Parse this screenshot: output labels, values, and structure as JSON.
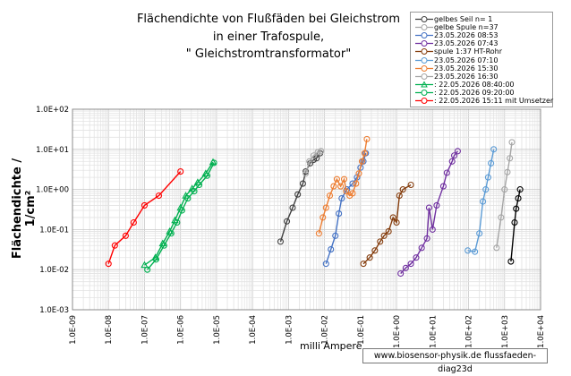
{
  "chart_data": {
    "type": "scatter",
    "title_lines": [
      "Flächendichte von Flußfäden bei Gleichstrom",
      "in einer Trafospule,",
      "\" Gleichstromtransformator\""
    ],
    "xlabel": "milli Ampere",
    "ylabel": "Flächendichte / 1/cm²",
    "x_scale": "log",
    "y_scale": "log",
    "xlim": [
      1e-09,
      10000.0
    ],
    "ylim": [
      0.001,
      100
    ],
    "x_tick_labels": [
      "1.0E-09",
      "1.0E-08",
      "1.0E-07",
      "1.0E-06",
      "1.0E-05",
      "1.0E-04",
      "1.0E-03",
      "1.0E-02",
      "1.0E-01",
      "1.0E+00",
      "1.0E+01",
      "1.0E+02",
      "1.0E+03",
      "1.0E+04"
    ],
    "y_tick_labels": [
      "1.0E+02",
      "1.0E+01",
      "1.0E+00",
      "1.0E-01",
      "1.0E-02",
      "1.0E-03"
    ],
    "grid": true,
    "legend_position": "top-right",
    "footer_text": "www.biosensor-physik.de  flussfaeden-diag23d",
    "series": [
      {
        "name": "gelbes Seil n= 1",
        "color": "#404040",
        "marker": "circle",
        "points": [
          [
            0.0006,
            0.05
          ],
          [
            0.0009,
            0.16
          ],
          [
            0.0013,
            0.35
          ],
          [
            0.0018,
            0.75
          ],
          [
            0.0025,
            1.4
          ],
          [
            0.003,
            2.8
          ],
          [
            0.004,
            4.5
          ],
          [
            0.005,
            5.5
          ],
          [
            0.006,
            6
          ],
          [
            0.0075,
            8
          ]
        ]
      },
      {
        "name": "gelbe Spule n=37",
        "color": "#a6a6a6",
        "marker": "circle",
        "points": [
          [
            0.003,
            2.5
          ],
          [
            0.0038,
            5
          ],
          [
            0.005,
            7
          ],
          [
            0.0065,
            8.5
          ],
          [
            0.008,
            9
          ]
        ]
      },
      {
        "name": "23.05.2026 08:53",
        "color": "#4472c4",
        "marker": "circle",
        "points": [
          [
            0.011,
            0.014
          ],
          [
            0.015,
            0.032
          ],
          [
            0.02,
            0.07
          ],
          [
            0.025,
            0.25
          ],
          [
            0.03,
            0.6
          ],
          [
            0.042,
            1
          ],
          [
            0.06,
            1.4
          ],
          [
            0.08,
            2
          ],
          [
            0.1,
            3.5
          ],
          [
            0.12,
            5
          ],
          [
            0.14,
            8
          ]
        ]
      },
      {
        "name": "23.05.2026 07:43",
        "color": "#7030a0",
        "marker": "circle",
        "points": [
          [
            1.3,
            0.008
          ],
          [
            1.8,
            0.011
          ],
          [
            2.5,
            0.014
          ],
          [
            3.5,
            0.02
          ],
          [
            5,
            0.035
          ],
          [
            7,
            0.06
          ],
          [
            8,
            0.35
          ],
          [
            10,
            0.1
          ],
          [
            13,
            0.4
          ],
          [
            20,
            1.2
          ],
          [
            25,
            2.6
          ],
          [
            35,
            5
          ],
          [
            40,
            7
          ],
          [
            50,
            9
          ]
        ]
      },
      {
        "name": "spule 1:37 HT-Rohr",
        "color": "#843c0c",
        "marker": "circle",
        "points": [
          [
            0.12,
            0.014
          ],
          [
            0.18,
            0.02
          ],
          [
            0.25,
            0.03
          ],
          [
            0.35,
            0.05
          ],
          [
            0.45,
            0.07
          ],
          [
            0.6,
            0.09
          ],
          [
            0.8,
            0.2
          ],
          [
            1,
            0.15
          ],
          [
            1.2,
            0.7
          ],
          [
            1.5,
            1
          ],
          [
            2.5,
            1.3
          ]
        ]
      },
      {
        "name": "23.05.2026 07:10",
        "color": "#5b9bd5",
        "marker": "circle",
        "points": [
          [
            95,
            0.03
          ],
          [
            150,
            0.028
          ],
          [
            200,
            0.08
          ],
          [
            250,
            0.5
          ],
          [
            300,
            1
          ],
          [
            350,
            2
          ],
          [
            420,
            4.5
          ],
          [
            500,
            10
          ]
        ]
      },
      {
        "name": "23.05.2026 15:30",
        "color": "#ed7d31",
        "marker": "circle",
        "points": [
          [
            0.007,
            0.08
          ],
          [
            0.009,
            0.2
          ],
          [
            0.011,
            0.35
          ],
          [
            0.014,
            0.7
          ],
          [
            0.018,
            1.2
          ],
          [
            0.022,
            1.8
          ],
          [
            0.028,
            1.2
          ],
          [
            0.035,
            1.8
          ],
          [
            0.04,
            0.9
          ],
          [
            0.05,
            0.7
          ],
          [
            0.06,
            0.8
          ],
          [
            0.075,
            1.4
          ],
          [
            0.09,
            2.5
          ],
          [
            0.11,
            5
          ],
          [
            0.13,
            8
          ],
          [
            0.15,
            18
          ]
        ]
      },
      {
        "name": "23.05.2026 16:30",
        "color": "#a5a5a5",
        "marker": "circle",
        "points": [
          [
            600,
            0.035
          ],
          [
            800,
            0.2
          ],
          [
            1000,
            1
          ],
          [
            1200,
            2.7
          ],
          [
            1400,
            6
          ],
          [
            1600,
            15
          ]
        ]
      },
      {
        "name": ": 22.05.2026  08:40:00",
        "color": "#00b050",
        "marker": "triangle",
        "points": [
          [
            1e-07,
            0.013
          ],
          [
            2e-07,
            0.02
          ],
          [
            3.2e-07,
            0.045
          ],
          [
            5e-07,
            0.09
          ],
          [
            7e-07,
            0.17
          ],
          [
            1e-06,
            0.35
          ],
          [
            1.4e-06,
            0.7
          ],
          [
            2.1e-06,
            1.05
          ],
          [
            3e-06,
            1.5
          ],
          [
            5e-06,
            2.5
          ],
          [
            8e-06,
            4.8
          ]
        ]
      },
      {
        "name": ": 22.05.2026  09:20:00",
        "color": "#00b050",
        "marker": "circle",
        "points": [
          [
            1.2e-07,
            0.01
          ],
          [
            2.1e-07,
            0.018
          ],
          [
            3.5e-07,
            0.04
          ],
          [
            5.5e-07,
            0.08
          ],
          [
            8e-07,
            0.15
          ],
          [
            1.1e-06,
            0.3
          ],
          [
            1.6e-06,
            0.6
          ],
          [
            2.4e-06,
            0.9
          ],
          [
            3.3e-06,
            1.3
          ],
          [
            5.5e-06,
            2.2
          ],
          [
            8.5e-06,
            4.6
          ]
        ]
      },
      {
        "name": ": 22.05.2026 15:11 mit Umsetzer",
        "color": "#ff0000",
        "marker": "circle",
        "points": [
          [
            1e-08,
            0.014
          ],
          [
            1.5e-08,
            0.04
          ],
          [
            3e-08,
            0.07
          ],
          [
            5e-08,
            0.15
          ],
          [
            1e-07,
            0.4
          ],
          [
            2.5e-07,
            0.7
          ],
          [
            1e-06,
            2.8
          ]
        ]
      },
      {
        "name": "",
        "color": "#000000",
        "marker": "circle",
        "points": [
          [
            1500,
            0.016
          ],
          [
            1900,
            0.15
          ],
          [
            2100,
            0.33
          ],
          [
            2400,
            0.6
          ],
          [
            2700,
            1
          ]
        ]
      }
    ]
  }
}
